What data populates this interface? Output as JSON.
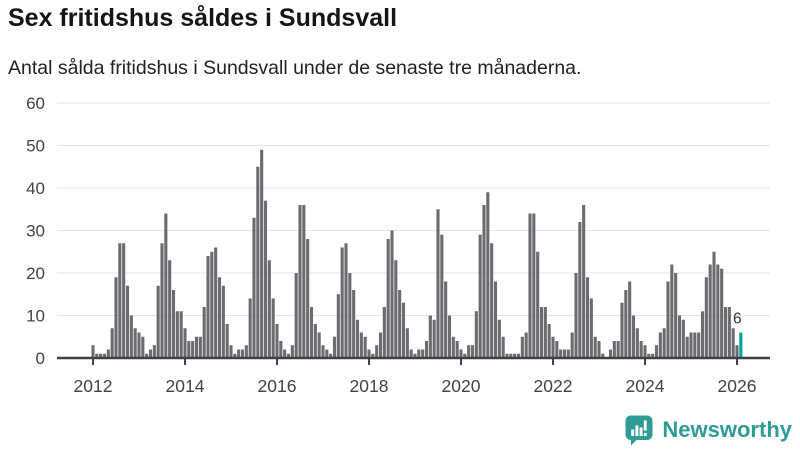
{
  "chart_data": {
    "type": "bar",
    "title": "Sex fritidshus såldes i Sundsvall",
    "subtitle": "Antal sålda fritidshus i Sundsvall under de senaste tre månaderna.",
    "xlabel": "",
    "ylabel": "",
    "ylim": [
      0,
      60
    ],
    "y_ticks": [
      0,
      10,
      20,
      30,
      40,
      50,
      60
    ],
    "x_ticks": [
      2012,
      2014,
      2016,
      2018,
      2020,
      2022,
      2024,
      2026
    ],
    "x_unit": "month",
    "start_month": "2012-01",
    "end_month": "2026-02",
    "grid": true,
    "legend": false,
    "bar_color": "#6b6b70",
    "gridline_color": "#e4e4e6",
    "axis_color": "#414145",
    "tick_label_color": "#434347",
    "series_by_year": [
      {
        "year": 2012,
        "values": [
          3,
          1,
          1,
          1,
          2,
          7,
          19,
          27,
          27,
          17,
          10,
          7
        ]
      },
      {
        "year": 2013,
        "values": [
          6,
          5,
          1,
          2,
          3,
          17,
          27,
          34,
          23,
          16,
          11,
          11
        ]
      },
      {
        "year": 2014,
        "values": [
          7,
          4,
          4,
          5,
          5,
          12,
          24,
          25,
          26,
          19,
          17,
          8
        ]
      },
      {
        "year": 2015,
        "values": [
          3,
          1,
          2,
          2,
          3,
          14,
          33,
          45,
          49,
          37,
          23,
          14
        ]
      },
      {
        "year": 2016,
        "values": [
          8,
          4,
          2,
          1,
          3,
          20,
          36,
          36,
          28,
          12,
          8,
          6
        ]
      },
      {
        "year": 2017,
        "values": [
          3,
          2,
          1,
          5,
          15,
          26,
          27,
          20,
          16,
          9,
          6,
          5
        ]
      },
      {
        "year": 2018,
        "values": [
          2,
          1,
          3,
          6,
          12,
          28,
          30,
          23,
          16,
          13,
          7,
          2
        ]
      },
      {
        "year": 2019,
        "values": [
          1,
          2,
          2,
          4,
          10,
          9,
          35,
          29,
          18,
          10,
          5,
          4
        ]
      },
      {
        "year": 2020,
        "values": [
          2,
          1,
          3,
          3,
          11,
          29,
          36,
          39,
          27,
          18,
          9,
          5
        ]
      },
      {
        "year": 2021,
        "values": [
          1,
          1,
          1,
          1,
          5,
          6,
          34,
          34,
          25,
          12,
          12,
          8
        ]
      },
      {
        "year": 2022,
        "values": [
          5,
          4,
          2,
          2,
          2,
          6,
          20,
          32,
          36,
          19,
          14,
          5
        ]
      },
      {
        "year": 2023,
        "values": [
          4,
          1,
          0,
          2,
          4,
          4,
          13,
          16,
          18,
          10,
          7,
          4
        ]
      },
      {
        "year": 2024,
        "values": [
          3,
          1,
          1,
          3,
          6,
          7,
          18,
          22,
          20,
          10,
          9,
          5
        ]
      },
      {
        "year": 2025,
        "values": [
          6,
          6,
          6,
          11,
          19,
          22,
          25,
          22,
          21,
          12,
          12,
          7
        ]
      },
      {
        "year": 2026,
        "values": [
          3,
          6
        ]
      }
    ],
    "highlight_last_bar": {
      "value": 6,
      "label": "6",
      "color": "#00a29a",
      "label_color": "#333333"
    }
  },
  "footer": {
    "brand": "Newsworthy",
    "brand_color": "#2f9c95"
  }
}
